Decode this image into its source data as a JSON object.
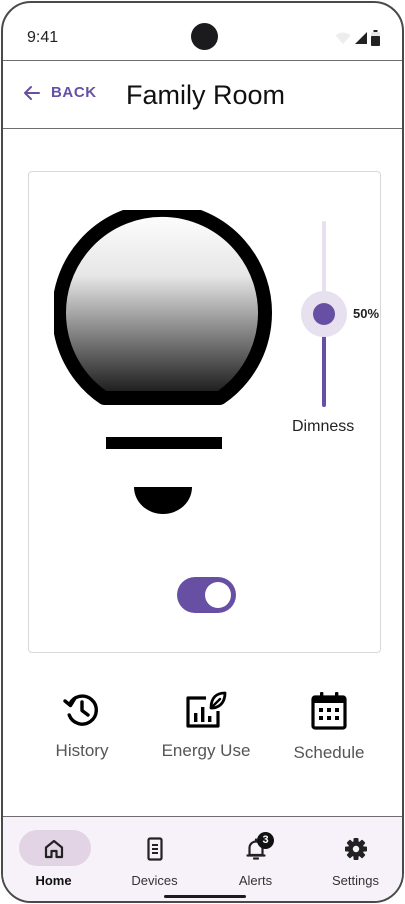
{
  "status_bar": {
    "time": "9:41",
    "icons": [
      "wifi-icon",
      "signal-icon",
      "battery-icon"
    ]
  },
  "header": {
    "back_label": "BACK",
    "title": "Family Room"
  },
  "light": {
    "dimness_label": "Dimness",
    "dimness_value": "50%",
    "dimness_level": 0.5,
    "power_on": true
  },
  "quick_actions": [
    {
      "label": "History",
      "icon": "history-icon"
    },
    {
      "label": "Energy Use",
      "icon": "energy-use-icon"
    },
    {
      "label": "Schedule",
      "icon": "schedule-icon"
    }
  ],
  "nav": {
    "items": [
      {
        "label": "Home",
        "icon": "home-icon",
        "active": true
      },
      {
        "label": "Devices",
        "icon": "devices-icon",
        "active": false
      },
      {
        "label": "Alerts",
        "icon": "alerts-icon",
        "active": false,
        "badge": "3"
      },
      {
        "label": "Settings",
        "icon": "settings-icon",
        "active": false
      }
    ]
  },
  "colors": {
    "accent": "#6750a4",
    "accent_light": "#e6e0ef",
    "nav_background": "#f7f2fa",
    "nav_active_pill": "#e2d4e4"
  }
}
